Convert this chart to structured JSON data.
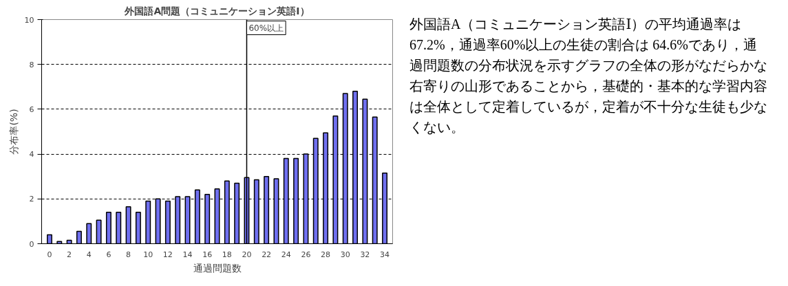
{
  "chart_data": {
    "type": "bar",
    "title": "外国語A問題（コミュニケーション英語Ⅰ）",
    "xlabel": "通過問題数",
    "ylabel": "分布率(%)",
    "x": [
      0,
      1,
      2,
      3,
      4,
      5,
      6,
      7,
      8,
      9,
      10,
      11,
      12,
      13,
      14,
      15,
      16,
      17,
      18,
      19,
      20,
      21,
      22,
      23,
      24,
      25,
      26,
      27,
      28,
      29,
      30,
      31,
      32,
      33,
      34
    ],
    "xlim": [
      -0.8,
      34.8
    ],
    "xticks": [
      0,
      2,
      4,
      6,
      8,
      10,
      12,
      14,
      16,
      18,
      20,
      22,
      24,
      26,
      28,
      30,
      32,
      34
    ],
    "values": [
      0.4,
      0.1,
      0.15,
      0.55,
      0.9,
      1.05,
      1.4,
      1.4,
      1.65,
      1.4,
      1.9,
      2.0,
      1.9,
      2.1,
      2.1,
      2.4,
      2.2,
      2.45,
      2.8,
      2.7,
      2.95,
      2.85,
      3.0,
      2.9,
      3.8,
      3.8,
      4.0,
      4.7,
      4.95,
      5.7,
      6.7,
      6.8,
      6.45,
      5.65,
      3.15
    ],
    "color": "#7070f0",
    "ylim": [
      0,
      10
    ],
    "yticks": [
      0,
      2,
      4,
      6,
      8,
      10
    ],
    "grid": "y",
    "ref_lines": [
      {
        "axis": "x",
        "value": 20,
        "label": "60%以上",
        "color": "#000000"
      }
    ],
    "annotations": [
      "外国語A（コミュニケーション英語Ⅰ）の平均通過率は67.2%，通過率60%以上の生徒の割合は 64.6%であり，通過問題数の分布状況を示すグラフの全体の形がなだらかな右寄りの山形であることから，基礎的・基本的な学習内容は全体として定着しているが，定着が不十分な生徒も少なくない。"
    ]
  }
}
